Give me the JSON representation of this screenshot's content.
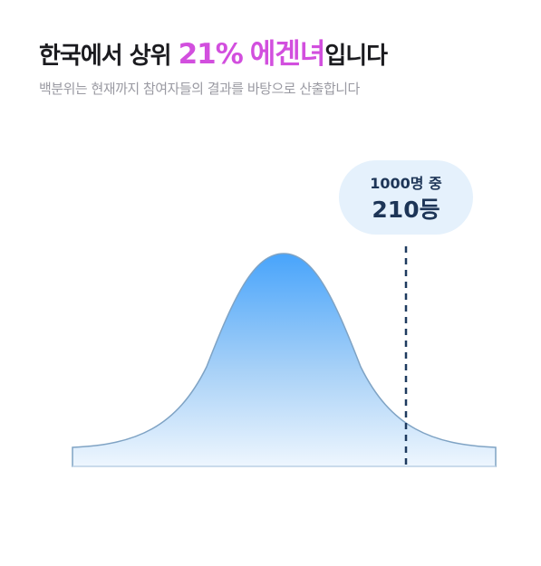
{
  "header": {
    "title": {
      "prefix": "한국에서 상위",
      "percent": "21%",
      "type": "에겐녀",
      "suffix": "입니다"
    },
    "subtitle": "백분위는 현재까지 참여자들의 결과를 바탕으로 산출합니다"
  },
  "rank_badge": {
    "total": "1000명 중",
    "rank": "210등"
  }
}
